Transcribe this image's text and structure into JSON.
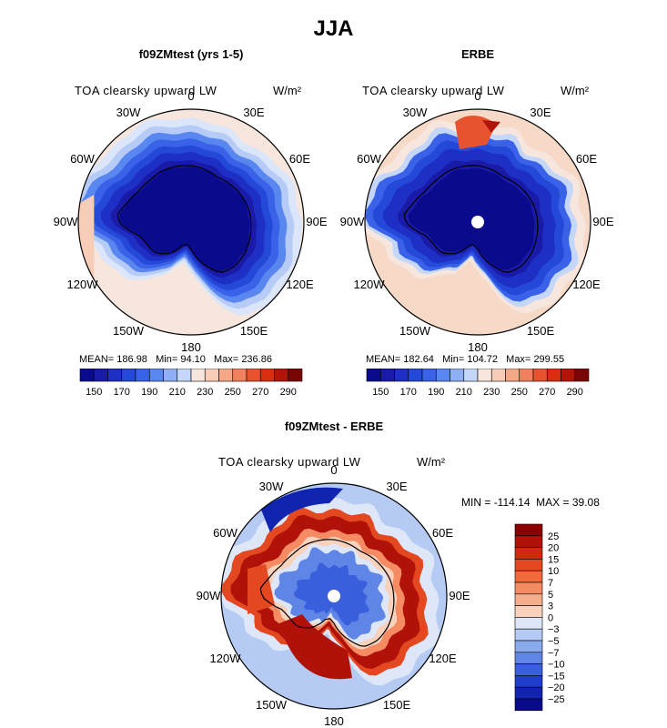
{
  "title": "JJA",
  "chart_data": [
    {
      "type": "heatmap",
      "projection": "south-polar-stereographic",
      "title": "f09ZMtest (yrs 1-5)",
      "variable": "TOA clearsky upward LW",
      "units": "W/m²",
      "stats": {
        "mean_label": "MEAN=",
        "mean": "186.98",
        "min_label": "Min=",
        "min": "94.10",
        "max_label": "Max=",
        "max": "236.86"
      },
      "lon_labels": [
        "0",
        "30E",
        "60E",
        "90E",
        "120E",
        "150E",
        "180",
        "150W",
        "120W",
        "90W",
        "60W",
        "30W"
      ],
      "contour_levels": [
        150,
        160,
        170,
        180,
        190,
        200,
        210,
        220,
        230,
        240,
        250,
        260,
        270,
        280,
        290
      ],
      "colorbar_tick_labels": [
        "150",
        "170",
        "190",
        "210",
        "230",
        "250",
        "270",
        "290"
      ],
      "colorbar_colors": [
        "#0a0a8c",
        "#1a1aa8",
        "#1d2fc4",
        "#2448d8",
        "#3a62e8",
        "#5a86f0",
        "#8fb0f4",
        "#c5d7f8",
        "#f6e6dd",
        "#f7cdb7",
        "#f5a888",
        "#f0805e",
        "#e8532f",
        "#d92d12",
        "#b3140a",
        "#7a0505"
      ],
      "range": [
        94.1,
        236.86
      ]
    },
    {
      "type": "heatmap",
      "projection": "south-polar-stereographic",
      "title": "ERBE",
      "variable": "TOA clearsky upward LW",
      "units": "W/m²",
      "stats": {
        "mean_label": "MEAN=",
        "mean": "182.64",
        "min_label": "Min=",
        "min": "104.72",
        "max_label": "Max=",
        "max": "299.55"
      },
      "lon_labels": [
        "0",
        "30E",
        "60E",
        "90E",
        "120E",
        "150E",
        "180",
        "150W",
        "120W",
        "90W",
        "60W",
        "30W"
      ],
      "contour_levels": [
        150,
        160,
        170,
        180,
        190,
        200,
        210,
        220,
        230,
        240,
        250,
        260,
        270,
        280,
        290
      ],
      "colorbar_tick_labels": [
        "150",
        "170",
        "190",
        "210",
        "230",
        "250",
        "270",
        "290"
      ],
      "colorbar_colors": [
        "#0a0a8c",
        "#1a1aa8",
        "#1d2fc4",
        "#2448d8",
        "#3a62e8",
        "#5a86f0",
        "#8fb0f4",
        "#c5d7f8",
        "#f6e6dd",
        "#f7cdb7",
        "#f5a888",
        "#f0805e",
        "#e8532f",
        "#d92d12",
        "#b3140a",
        "#7a0505"
      ],
      "range": [
        104.72,
        299.55
      ]
    },
    {
      "type": "heatmap",
      "projection": "south-polar-stereographic",
      "title": "f09ZMtest - ERBE",
      "variable": "TOA clearsky upward LW",
      "units": "W/m²",
      "stats": {
        "min_label": "MIN =",
        "min": "-114.14",
        "max_label": "MAX =",
        "max": "39.08"
      },
      "lon_labels": [
        "0",
        "30E",
        "60E",
        "90E",
        "120E",
        "150E",
        "180",
        "150W",
        "120W",
        "90W",
        "60W",
        "30W"
      ],
      "contour_levels": [
        -25,
        -20,
        -15,
        -10,
        -7,
        -5,
        -3,
        0,
        3,
        5,
        7,
        10,
        15,
        20,
        25
      ],
      "colorbar_tick_labels": [
        "25",
        "20",
        "15",
        "10",
        "7",
        "5",
        "3",
        "0",
        "−3",
        "−5",
        "−7",
        "−10",
        "−15",
        "−20",
        "−25"
      ],
      "colorbar_colors": [
        "#8b0000",
        "#b0120a",
        "#cf2a10",
        "#e44820",
        "#f06a3c",
        "#f48b62",
        "#f6ad8c",
        "#f8d2bc",
        "#dde7f8",
        "#b6cbf4",
        "#8aaaee",
        "#5f86e6",
        "#3a5fdc",
        "#1e3ecc",
        "#1024b0",
        "#0a0a8c"
      ],
      "range": [
        -114.14,
        39.08
      ]
    }
  ]
}
